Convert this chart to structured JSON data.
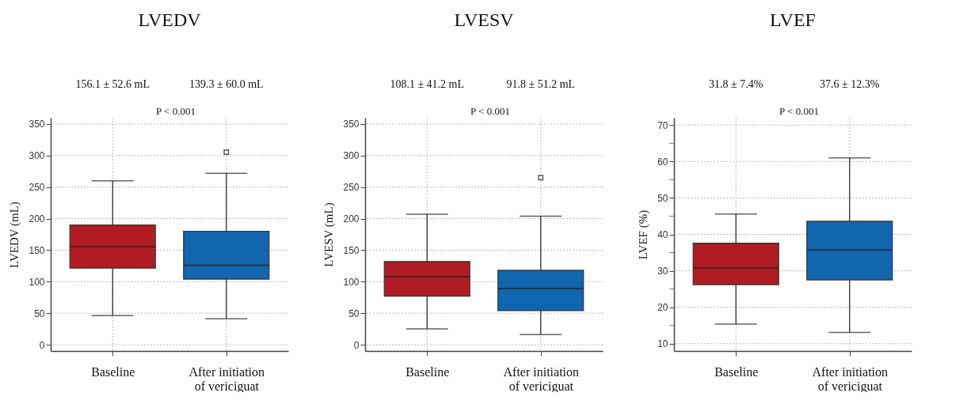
{
  "chart_data": [
    {
      "type": "box",
      "title": "LVEDV",
      "ylabel": "LVEDV (mL)",
      "categories": [
        "Baseline",
        "After initiation of vericiguat"
      ],
      "colors": [
        "#b01c22",
        "#1166b0"
      ],
      "ylim": [
        -10,
        360
      ],
      "yticks": [
        0,
        50,
        100,
        150,
        200,
        250,
        300,
        350
      ],
      "grid": true,
      "boxes": [
        {
          "low": 46,
          "q1": 121.5,
          "median": 155.5,
          "q3": 190,
          "high": 260
        },
        {
          "low": 41,
          "q1": 104,
          "median": 126,
          "q3": 180,
          "high": 272,
          "outliers": [
            305.5
          ]
        }
      ],
      "annotations": [
        "156.1 ± 52.6 mL",
        "139.3 ± 60.0 mL",
        "P < 0.001"
      ]
    },
    {
      "type": "box",
      "title": "LVESV",
      "ylabel": "LVESV (mL)",
      "categories": [
        "Baseline",
        "After initiation of vericiguat"
      ],
      "colors": [
        "#b01c22",
        "#1166b0"
      ],
      "ylim": [
        -10,
        360
      ],
      "yticks": [
        0,
        50,
        100,
        150,
        200,
        250,
        300,
        350
      ],
      "grid": true,
      "boxes": [
        {
          "low": 25,
          "q1": 77,
          "median": 108,
          "q3": 132,
          "high": 207
        },
        {
          "low": 16,
          "q1": 54,
          "median": 89,
          "q3": 118,
          "high": 204,
          "outliers": [
            265
          ]
        }
      ],
      "annotations": [
        "108.1 ± 41.2 mL",
        "91.8 ± 51.2 mL",
        "P < 0.001"
      ]
    },
    {
      "type": "box",
      "title": "LVEF",
      "ylabel": "LVEF (%)",
      "categories": [
        "Baseline",
        "After initiation of vericiguat"
      ],
      "colors": [
        "#b01c22",
        "#1166b0"
      ],
      "ylim": [
        8,
        72
      ],
      "yticks": [
        10,
        {
          "value": 15,
          "label": null
        },
        20,
        {
          "value": 25,
          "label": null
        },
        30,
        {
          "value": 35,
          "label": null
        },
        40,
        {
          "value": 45,
          "label": null
        },
        50,
        {
          "value": 55,
          "label": null
        },
        60,
        {
          "value": 65,
          "label": null
        },
        70
      ],
      "grid": true,
      "boxes": [
        {
          "low": 15.4,
          "q1": 26.2,
          "median": 30.8,
          "q3": 37.6,
          "high": 45.6
        },
        {
          "low": 13.1,
          "q1": 27.5,
          "median": 35.7,
          "q3": 43.6,
          "high": 61
        }
      ],
      "annotations": [
        "31.8 ± 7.4%",
        "37.6 ± 12.3%",
        "P < 0.001"
      ]
    }
  ]
}
